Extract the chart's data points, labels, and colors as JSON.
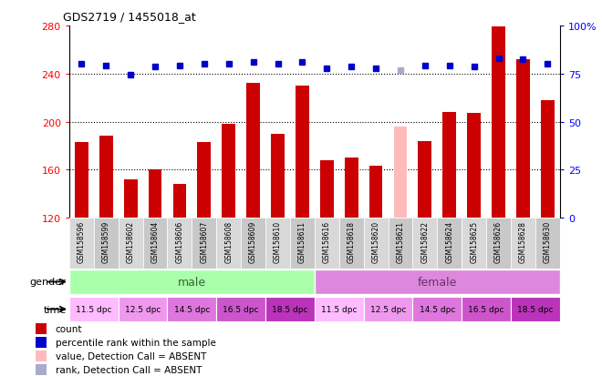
{
  "title": "GDS2719 / 1455018_at",
  "samples": [
    "GSM158596",
    "GSM158599",
    "GSM158602",
    "GSM158604",
    "GSM158606",
    "GSM158607",
    "GSM158608",
    "GSM158609",
    "GSM158610",
    "GSM158611",
    "GSM158616",
    "GSM158618",
    "GSM158620",
    "GSM158621",
    "GSM158622",
    "GSM158624",
    "GSM158625",
    "GSM158626",
    "GSM158628",
    "GSM158630"
  ],
  "bar_values": [
    183,
    188,
    152,
    160,
    148,
    183,
    198,
    232,
    190,
    230,
    168,
    170,
    163,
    196,
    184,
    208,
    207,
    279,
    252,
    218
  ],
  "bar_absent": [
    false,
    false,
    false,
    false,
    false,
    false,
    false,
    false,
    false,
    false,
    false,
    false,
    false,
    true,
    false,
    false,
    false,
    false,
    false,
    false
  ],
  "rank_values": [
    248,
    247,
    239,
    246,
    247,
    248,
    248,
    250,
    248,
    250,
    244,
    246,
    244,
    243,
    247,
    247,
    246,
    253,
    252,
    248
  ],
  "rank_absent": [
    false,
    false,
    false,
    false,
    false,
    false,
    false,
    false,
    false,
    false,
    false,
    false,
    false,
    true,
    false,
    false,
    false,
    false,
    false,
    false
  ],
  "gender": [
    "male",
    "male",
    "male",
    "male",
    "male",
    "male",
    "male",
    "male",
    "male",
    "male",
    "female",
    "female",
    "female",
    "female",
    "female",
    "female",
    "female",
    "female",
    "female",
    "female"
  ],
  "time_labels": [
    "11.5 dpc",
    "12.5 dpc",
    "14.5 dpc",
    "16.5 dpc",
    "18.5 dpc"
  ],
  "ylim_left": [
    120,
    280
  ],
  "yticks_left": [
    120,
    160,
    200,
    240,
    280
  ],
  "ylim_right": [
    0,
    100
  ],
  "yticks_right": [
    0,
    25,
    50,
    75,
    100
  ],
  "bar_color": "#cc0000",
  "bar_absent_color": "#ffbbbb",
  "rank_color": "#0000cc",
  "rank_absent_color": "#aaaacc",
  "male_color": "#aaffaa",
  "female_color": "#dd88dd",
  "time_colors": [
    "#ffbbff",
    "#ee99ee",
    "#dd77dd",
    "#cc55cc",
    "#bb33bb"
  ],
  "legend_items": [
    {
      "label": "count",
      "color": "#cc0000"
    },
    {
      "label": "percentile rank within the sample",
      "color": "#0000cc"
    },
    {
      "label": "value, Detection Call = ABSENT",
      "color": "#ffbbbb"
    },
    {
      "label": "rank, Detection Call = ABSENT",
      "color": "#aaaacc"
    }
  ]
}
